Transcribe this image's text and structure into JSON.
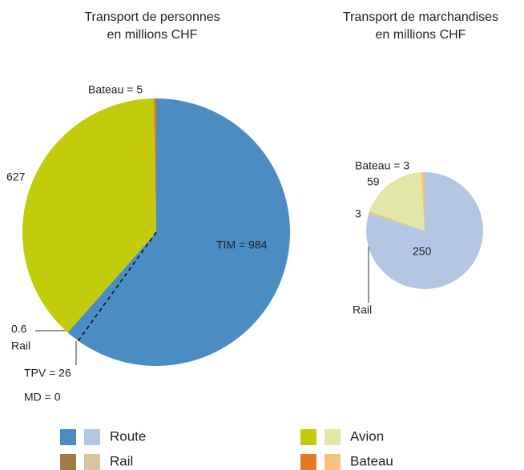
{
  "chart_data": [
    {
      "type": "pie",
      "title": [
        "Transport de personnes",
        "en millions CHF"
      ],
      "values": [
        984,
        26,
        0,
        0.6,
        627,
        5
      ],
      "value_labels": [
        "TIM = 984",
        "TPV = 26",
        "MD = 0",
        "0.6",
        "627",
        "Bateau = 5"
      ],
      "colors": [
        "#4b8cc3",
        "#4b8cc3",
        "#4b8cc3",
        "#a07d45",
        "#c2cc0b",
        "#e8791e"
      ],
      "annotations": [
        "Rail"
      ]
    },
    {
      "type": "pie",
      "title": [
        "Transport de marchandises",
        "en millions CHF"
      ],
      "values": [
        250,
        3,
        59,
        3
      ],
      "value_labels": [
        "250",
        "3",
        "59",
        "Bateau = 3"
      ],
      "colors": [
        "#b3c6e3",
        "#d9c4a0",
        "#e2e6a6",
        "#f7c07e"
      ],
      "annotations": [
        "Rail"
      ]
    }
  ],
  "legend": [
    {
      "name": "Route",
      "colors": [
        "#4b8cc3",
        "#b3c6e3"
      ]
    },
    {
      "name": "Avion",
      "colors": [
        "#c2cc0b",
        "#e2e6a6"
      ]
    },
    {
      "name": "Rail",
      "colors": [
        "#a07d45",
        "#d9c4a0"
      ]
    },
    {
      "name": "Bateau",
      "colors": [
        "#e8791e",
        "#f7c07e"
      ]
    }
  ]
}
